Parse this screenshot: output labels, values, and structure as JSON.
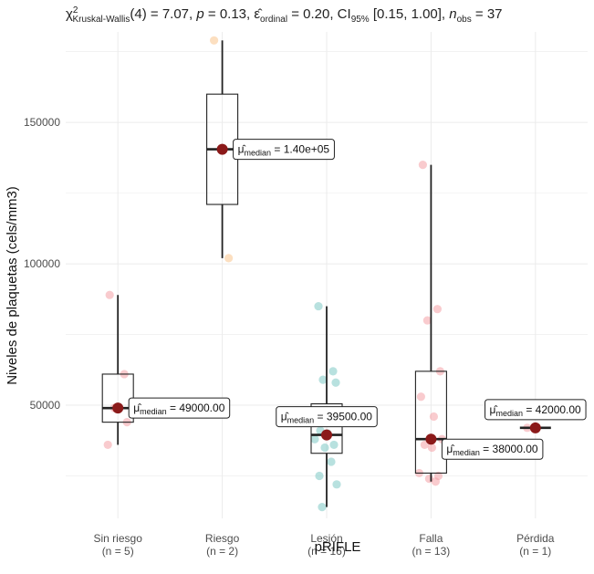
{
  "chart_data": {
    "type": "box",
    "xlabel": "pRIFLE",
    "ylabel": "Niveles de plaquetas (cels/mm3)",
    "ylim": [
      10000,
      182000
    ],
    "y_ticks": [
      50000,
      100000,
      150000
    ],
    "y_tick_labels": [
      "50000",
      "100000",
      "150000"
    ],
    "grid": true,
    "subtitle_parts": {
      "chi": "χ",
      "sup2": "2",
      "kw_sub": "Kruskal-Wallis",
      "df": "(4) = 7.07, ",
      "p": "p",
      "p_val": " = 0.13, ",
      "eps": "ε̂",
      "eps_sub": "ordinal",
      "eps_val": " = 0.20, CI",
      "ci_sub": "95%",
      "ci_val": " [0.15, 1.00], ",
      "n": "n",
      "n_sub": "obs",
      "n_val": " = 37"
    },
    "mu_symbol": "μ̂",
    "mu_sub": "median",
    "categories": [
      {
        "name": "Sin riesgo",
        "n_label": "(n = 5)",
        "color": "#f4a0a6",
        "q1": 44000,
        "median": 49000,
        "q3": 61000,
        "wlo": 36000,
        "whi": 89000,
        "median_label": " = 49000.00",
        "points": [
          89000,
          61000,
          49000,
          44000,
          36000
        ]
      },
      {
        "name": "Riesgo",
        "n_label": "(n = 2)",
        "color": "#f9c58c",
        "q1": 121000,
        "median": 140500,
        "q3": 160000,
        "wlo": 102000,
        "whi": 179000,
        "median_label": " = 1.40e+05",
        "points": [
          179000,
          102000
        ]
      },
      {
        "name": "Lesión",
        "n_label": "(n = 16)",
        "color": "#7ec8c4",
        "q1": 33000,
        "median": 39500,
        "q3": 50500,
        "wlo": 14000,
        "whi": 85000,
        "median_label": " = 39500.00",
        "points": [
          85000,
          62000,
          59000,
          58000,
          48000,
          46000,
          44000,
          41000,
          40000,
          38000,
          36000,
          35000,
          30000,
          25000,
          22000,
          14000
        ]
      },
      {
        "name": "Falla",
        "n_label": "(n = 13)",
        "color": "#f4a0a6",
        "q1": 26000,
        "median": 38000,
        "q3": 62000,
        "wlo": 23000,
        "whi": 135000,
        "median_label": " = 38000.00",
        "points": [
          135000,
          84000,
          80000,
          62000,
          53000,
          46000,
          38000,
          36000,
          35000,
          26000,
          25000,
          24000,
          23000
        ]
      },
      {
        "name": "Pérdida",
        "n_label": "(n = 1)",
        "color": "#f4a0a6",
        "q1": 42000,
        "median": 42000,
        "q3": 42000,
        "wlo": 42000,
        "whi": 42000,
        "median_label": " = 42000.00",
        "points": [
          42000
        ]
      }
    ]
  }
}
